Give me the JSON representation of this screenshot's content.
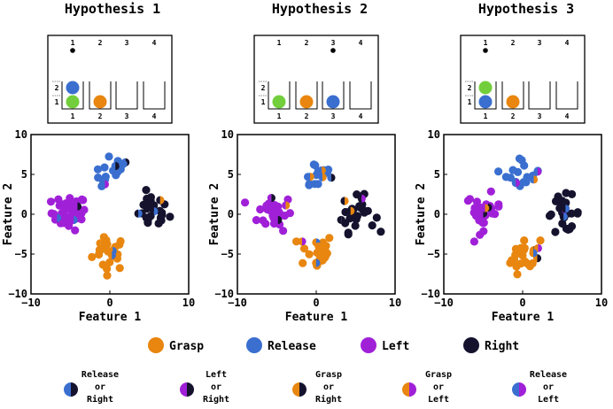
{
  "colors": {
    "grasp": "#e8860f",
    "release": "#3a6fd0",
    "left": "#a020d8",
    "right": "#15122e",
    "green": "#72cf3b"
  },
  "chart_data": [
    {
      "type": "scatter",
      "title": "Hypothesis 1",
      "xlabel": "Feature 1",
      "ylabel": "Feature 2",
      "xlim": [
        -10,
        10
      ],
      "ylim": [
        -10,
        10
      ],
      "xticks": [
        "−10",
        "0",
        "10"
      ],
      "yticks": [
        "10",
        "5",
        "0",
        "−5",
        "−10"
      ],
      "inset": {
        "top_numbers": [
          "1",
          "2",
          "3",
          "4"
        ],
        "bottom_numbers": [
          "1",
          "2",
          "3",
          "4"
        ],
        "level_numbers": [
          "2",
          "1"
        ],
        "marker_position": 1,
        "bins": [
          [
            "green",
            "release"
          ],
          [
            "grasp"
          ],
          [],
          []
        ]
      },
      "series": [
        {
          "class": "grasp",
          "center": [
            0,
            -4.8
          ],
          "n": 22
        },
        {
          "class": "release",
          "center": [
            0.3,
            5.0
          ],
          "n": 14
        },
        {
          "class": "left",
          "center": [
            -5.2,
            0.2
          ],
          "n": 34
        },
        {
          "class": "right",
          "center": [
            5.3,
            0.3
          ],
          "n": 24
        }
      ]
    },
    {
      "type": "scatter",
      "title": "Hypothesis 2",
      "xlabel": "Feature 1",
      "ylabel": "Feature 2",
      "xlim": [
        -10,
        10
      ],
      "ylim": [
        -10,
        10
      ],
      "xticks": [
        "−10",
        "0",
        "10"
      ],
      "yticks": [
        "10",
        "5",
        "0",
        "−5",
        "−10"
      ],
      "inset": {
        "top_numbers": [
          "1",
          "2",
          "3",
          "4"
        ],
        "bottom_numbers": [
          "1",
          "2",
          "3",
          "4"
        ],
        "level_numbers": [
          "2",
          "1"
        ],
        "marker_position": 3,
        "bins": [
          [
            "green"
          ],
          [
            "grasp"
          ],
          [
            "release"
          ],
          []
        ]
      },
      "series": [
        {
          "class": "grasp",
          "center": [
            0,
            -4.6
          ],
          "n": 22
        },
        {
          "class": "release",
          "center": [
            0.1,
            5.0
          ],
          "n": 14
        },
        {
          "class": "left",
          "center": [
            -5.2,
            0.2
          ],
          "n": 30
        },
        {
          "class": "right",
          "center": [
            5.2,
            0.0
          ],
          "n": 24
        }
      ]
    },
    {
      "type": "scatter",
      "title": "Hypothesis 3",
      "xlabel": "Feature 1",
      "ylabel": "Feature 2",
      "xlim": [
        -10,
        10
      ],
      "ylim": [
        -10,
        10
      ],
      "xticks": [
        "−10",
        "0",
        "10"
      ],
      "yticks": [
        "10",
        "5",
        "0",
        "−5",
        "−10"
      ],
      "inset": {
        "top_numbers": [
          "1",
          "2",
          "3",
          "4"
        ],
        "bottom_numbers": [
          "1",
          "2",
          "3",
          "4"
        ],
        "level_numbers": [
          "2",
          "1"
        ],
        "marker_position": 1,
        "bins": [
          [
            "release",
            "green"
          ],
          [
            "grasp"
          ],
          [],
          []
        ]
      },
      "series": [
        {
          "class": "grasp",
          "center": [
            0,
            -5.2
          ],
          "n": 20
        },
        {
          "class": "release",
          "center": [
            0.1,
            5.1
          ],
          "n": 14
        },
        {
          "class": "left",
          "center": [
            -5.0,
            0.3
          ],
          "n": 28
        },
        {
          "class": "right",
          "center": [
            5.2,
            0.1
          ],
          "n": 24
        }
      ]
    }
  ],
  "legend": [
    {
      "label": "Grasp",
      "color": "grasp"
    },
    {
      "label": "Release",
      "color": "release"
    },
    {
      "label": "Left",
      "color": "left"
    },
    {
      "label": "Right",
      "color": "right"
    }
  ],
  "legend2": [
    {
      "lines": [
        "Release",
        "or",
        "Right"
      ],
      "left": "release",
      "right": "right"
    },
    {
      "lines": [
        "Left",
        "or",
        "Right"
      ],
      "left": "left",
      "right": "right"
    },
    {
      "lines": [
        "Grasp",
        "or",
        "Right"
      ],
      "left": "grasp",
      "right": "right"
    },
    {
      "lines": [
        "Grasp",
        "or",
        "Left"
      ],
      "left": "grasp",
      "right": "left"
    },
    {
      "lines": [
        "Release",
        "or",
        "Left"
      ],
      "left": "release",
      "right": "left"
    }
  ]
}
